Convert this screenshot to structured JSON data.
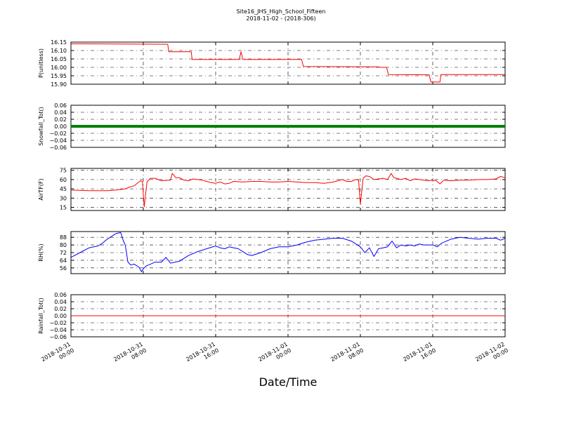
{
  "title": "Site16_JHS_High_School_Fifteen",
  "subtitle": "2018-11-02 - (2018-306)",
  "xlabel": "Date/Time",
  "x_ticks": [
    {
      "line1": "2018-10-31",
      "line2": "00:00",
      "hours": 0
    },
    {
      "line1": "2018-10-31",
      "line2": "08:00",
      "hours": 8
    },
    {
      "line1": "2018-10-31",
      "line2": "16:00",
      "hours": 16
    },
    {
      "line1": "2018-11-01",
      "line2": "00:00",
      "hours": 24
    },
    {
      "line1": "2018-11-01",
      "line2": "08:00",
      "hours": 32
    },
    {
      "line1": "2018-11-01",
      "line2": "16:00",
      "hours": 40
    },
    {
      "line1": "2018-11-02",
      "line2": "00:00",
      "hours": 48
    }
  ],
  "chart_data": [
    {
      "type": "line",
      "ylabel": "P(unitless)",
      "color": "#ff0000",
      "xlim": [
        0,
        48
      ],
      "ylim": [
        15.9,
        16.15
      ],
      "yticks": [
        "16.15",
        "16.10",
        "16.05",
        "16.00",
        "15.95",
        "15.90"
      ],
      "ytick_values": [
        16.15,
        16.1,
        16.05,
        16.0,
        15.95,
        15.9
      ],
      "grid": true,
      "x": [
        0,
        10.7,
        10.8,
        13.3,
        13.4,
        18.6,
        18.8,
        19.0,
        25.5,
        25.7,
        34.0,
        34.2,
        34.9,
        35.1,
        39.6,
        39.8,
        40.8,
        40.9,
        48.0
      ],
      "y": [
        16.14,
        16.137,
        16.093,
        16.093,
        16.047,
        16.047,
        16.093,
        16.047,
        16.047,
        16.005,
        16.003,
        16.0,
        16.0,
        15.957,
        15.956,
        15.913,
        15.913,
        15.957,
        15.957
      ]
    },
    {
      "type": "line",
      "ylabel": "Snowfall_Tot()",
      "color": "#008000",
      "xlim": [
        0,
        48
      ],
      "ylim": [
        -0.06,
        0.06
      ],
      "yticks": [
        "0.06",
        "0.04",
        "0.02",
        "0.00",
        "−0.02",
        "−0.04",
        "−0.06"
      ],
      "ytick_values": [
        0.06,
        0.04,
        0.02,
        0.0,
        -0.02,
        -0.04,
        -0.06
      ],
      "grid": true,
      "x": [
        0,
        48
      ],
      "y": [
        0,
        0
      ]
    },
    {
      "type": "line",
      "ylabel": "AirTF(F)",
      "color": "#ff0000",
      "xlim": [
        0,
        48
      ],
      "ylim": [
        10,
        78
      ],
      "yticks": [
        "75",
        "60",
        "45",
        "30",
        "15"
      ],
      "ytick_values": [
        75,
        60,
        45,
        30,
        15
      ],
      "grid": true,
      "x": [
        0,
        2,
        4,
        5,
        6,
        6.5,
        7,
        7.5,
        7.7,
        7.9,
        8.1,
        8.4,
        8.8,
        9.3,
        10,
        11,
        11.2,
        11.6,
        12,
        12.5,
        13,
        13.5,
        14.5,
        15,
        15.5,
        16,
        16.5,
        17,
        17.5,
        18,
        19,
        20,
        21,
        22,
        23,
        24,
        25,
        26,
        27,
        28,
        29,
        30,
        30.5,
        31,
        31.5,
        31.8,
        32.0,
        32.3,
        32.6,
        33,
        33.5,
        34,
        34.5,
        35,
        35.4,
        35.7,
        36,
        36.5,
        37,
        37.5,
        38,
        39,
        39.5,
        40.0,
        40.4,
        40.8,
        41.2,
        42,
        43,
        44,
        45,
        46,
        47,
        47.5,
        48
      ],
      "y": [
        43,
        42,
        42,
        43,
        45,
        48,
        50,
        56,
        58,
        57,
        16,
        56,
        62,
        62,
        58,
        59,
        70,
        63,
        63,
        59,
        58,
        61,
        59,
        57,
        55,
        54,
        56,
        53,
        54,
        57,
        56,
        57,
        57,
        56,
        56,
        57,
        56,
        55,
        55,
        54,
        56,
        60,
        57,
        57,
        60,
        59,
        20,
        62,
        66,
        65,
        60,
        61,
        62,
        60,
        70,
        63,
        62,
        60,
        62,
        58,
        61,
        59,
        58,
        59,
        58,
        53,
        59,
        58,
        59,
        59,
        60,
        60,
        61,
        65,
        63
      ]
    },
    {
      "type": "line",
      "ylabel": "RH(%)",
      "color": "#0000ff",
      "xlim": [
        0,
        48
      ],
      "ylim": [
        50,
        94
      ],
      "yticks": [
        "88",
        "80",
        "72",
        "64",
        "56"
      ],
      "ytick_values": [
        88,
        80,
        72,
        64,
        56
      ],
      "grid": true,
      "x": [
        0,
        1,
        2,
        3,
        3.5,
        4,
        4.5,
        5,
        5.5,
        5.8,
        6.0,
        6.3,
        6.6,
        7,
        7.5,
        7.8,
        8.0,
        8.3,
        8.8,
        9.3,
        10,
        10.5,
        11,
        11.5,
        12,
        12.5,
        13,
        13.5,
        14,
        15,
        16,
        16.5,
        17,
        17.5,
        18,
        18.5,
        19,
        19.5,
        20,
        21,
        22,
        23,
        24,
        25,
        26,
        27,
        28,
        29,
        30,
        31,
        32,
        32.5,
        33,
        33.5,
        34,
        34.5,
        35,
        35.5,
        36,
        36.5,
        37,
        37.5,
        38,
        38.5,
        39,
        40,
        40.5,
        41,
        42,
        43,
        44,
        45,
        46,
        47,
        47.5,
        48
      ],
      "y": [
        67,
        72,
        77,
        79,
        82,
        86,
        89,
        92,
        93,
        84,
        80,
        62,
        59,
        60,
        57,
        52,
        55,
        58,
        60,
        62,
        62,
        67,
        61,
        62,
        63,
        66,
        69,
        71,
        73,
        76,
        79,
        77,
        76,
        78,
        77,
        76,
        73,
        70,
        69,
        72,
        76,
        78,
        78,
        80,
        83,
        85,
        86,
        87,
        87,
        84,
        78,
        72,
        77,
        68,
        76,
        77,
        78,
        84,
        77,
        80,
        79,
        80,
        79,
        81,
        80,
        80,
        78,
        82,
        86,
        88,
        87,
        86,
        87,
        87,
        85,
        87
      ]
    },
    {
      "type": "line",
      "ylabel": "Rainfall_Tot()",
      "color": "#ff0000",
      "xlim": [
        0,
        48
      ],
      "ylim": [
        -0.06,
        0.06
      ],
      "yticks": [
        "0.06",
        "0.04",
        "0.02",
        "0.00",
        "−0.02",
        "−0.04",
        "−0.06"
      ],
      "ytick_values": [
        0.06,
        0.04,
        0.02,
        0.0,
        -0.02,
        -0.04,
        -0.06
      ],
      "grid": true,
      "x": [
        0,
        48
      ],
      "y": [
        0,
        0
      ]
    }
  ]
}
